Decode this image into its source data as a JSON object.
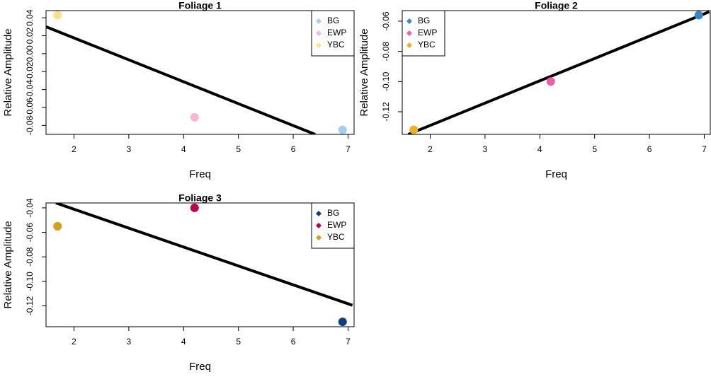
{
  "chart_data": [
    {
      "type": "scatter",
      "title": "Foliage 1",
      "x_label": "Freq",
      "y_label": "Relative Amplitude",
      "xlim": [
        1.49,
        7.11
      ],
      "ylim": [
        -0.09,
        0.048
      ],
      "xticks": [
        2,
        3,
        4,
        5,
        6,
        7
      ],
      "yticks": [
        0.04,
        0.02,
        {
          "value": 0,
          "label": "0.00"
        },
        -0.02,
        -0.04,
        -0.06,
        -0.08
      ],
      "legend": "topright",
      "series": [
        {
          "name": "BG",
          "color": "#a6cef3",
          "x": [
            6.9
          ],
          "values": [
            -0.085
          ]
        },
        {
          "name": "EWP",
          "color": "#f7b6d2",
          "x": [
            4.2
          ],
          "values": [
            -0.071
          ]
        },
        {
          "name": "YBC",
          "color": "#fde08a",
          "x": [
            1.7
          ],
          "values": [
            0.043
          ]
        }
      ],
      "fit_line": {
        "color": "#000000",
        "x": [
          1.49,
          6.4
        ],
        "y": [
          0.03,
          -0.09
        ]
      }
    },
    {
      "type": "scatter",
      "title": "Foliage 2",
      "x_label": "Freq",
      "y_label": "Relative Amplitude",
      "xlim": [
        1.49,
        7.11
      ],
      "ylim": [
        -0.135,
        -0.053
      ],
      "xticks": [
        2,
        3,
        4,
        5,
        6,
        7
      ],
      "yticks": [
        -0.06,
        -0.08,
        {
          "value": -0.1,
          "label": "-0.10"
        },
        -0.12
      ],
      "legend": "topleft",
      "series": [
        {
          "name": "BG",
          "color": "#3a87c8",
          "x": [
            6.9
          ],
          "values": [
            -0.056
          ]
        },
        {
          "name": "EWP",
          "color": "#f060a0",
          "x": [
            4.2
          ],
          "values": [
            -0.1
          ]
        },
        {
          "name": "YBC",
          "color": "#f0b020",
          "x": [
            1.7
          ],
          "values": [
            -0.132
          ]
        }
      ],
      "fit_line": {
        "color": "#000000",
        "x": [
          1.6,
          7.09
        ],
        "y": [
          -0.135,
          -0.0538
        ]
      }
    },
    {
      "type": "scatter",
      "title": "Foliage 3",
      "x_label": "Freq",
      "y_label": "Relative Amplitude",
      "xlim": [
        1.49,
        7.11
      ],
      "ylim": [
        -0.137,
        -0.036
      ],
      "xticks": [
        2,
        3,
        4,
        5,
        6,
        7
      ],
      "yticks": [
        -0.04,
        -0.06,
        -0.08,
        {
          "value": -0.1,
          "label": "-0.10"
        },
        -0.12
      ],
      "legend": "topright",
      "series": [
        {
          "name": "BG",
          "color": "#0d3f7a",
          "x": [
            6.9
          ],
          "values": [
            -0.133
          ]
        },
        {
          "name": "EWP",
          "color": "#c0004c",
          "x": [
            4.2
          ],
          "values": [
            -0.04
          ]
        },
        {
          "name": "YBC",
          "color": "#d4a017",
          "x": [
            1.7
          ],
          "values": [
            -0.055
          ]
        }
      ],
      "fit_line": {
        "color": "#000000",
        "x": [
          1.67,
          7.08
        ],
        "y": [
          -0.036,
          -0.1195
        ]
      }
    }
  ]
}
